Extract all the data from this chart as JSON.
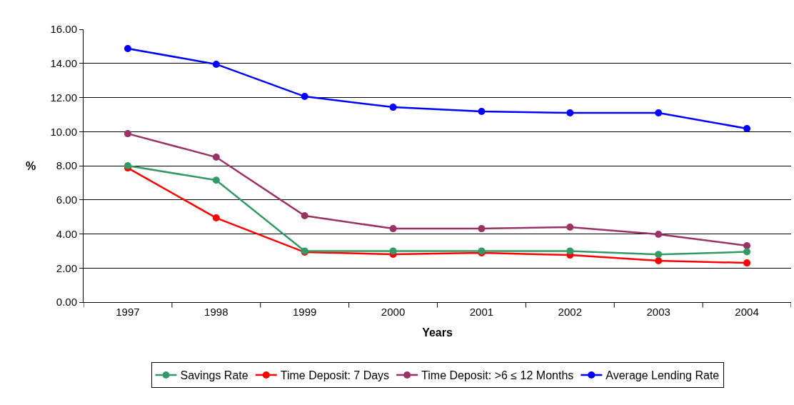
{
  "chart_data": {
    "type": "line",
    "xlabel": "Years",
    "ylabel": "%",
    "categories": [
      "1997",
      "1998",
      "1999",
      "2000",
      "2001",
      "2002",
      "2003",
      "2004"
    ],
    "series": [
      {
        "name": "Savings Rate",
        "color": "#339966",
        "values": [
          8.0,
          7.15,
          3.0,
          3.0,
          3.0,
          3.0,
          2.8,
          2.95
        ]
      },
      {
        "name": "Time Deposit: 7 Days",
        "color": "#ff0000",
        "values": [
          7.87,
          4.94,
          2.93,
          2.81,
          2.89,
          2.76,
          2.43,
          2.3
        ]
      },
      {
        "name": "Time Deposit: >6 ≤ 12 Months",
        "color": "#993366",
        "values": [
          9.88,
          8.5,
          5.07,
          4.31,
          4.31,
          4.4,
          3.98,
          3.31
        ]
      },
      {
        "name": "Average Lending Rate",
        "color": "#0000ff",
        "values": [
          14.87,
          13.95,
          12.06,
          11.43,
          11.18,
          11.1,
          11.1,
          10.18
        ]
      }
    ],
    "ylim": [
      0,
      16
    ],
    "yticks": [
      {
        "value": 0,
        "label": "0.00"
      },
      {
        "value": 2,
        "label": "2.00"
      },
      {
        "value": 4,
        "label": "4.00"
      },
      {
        "value": 6,
        "label": "6.00"
      },
      {
        "value": 8,
        "label": "8.00"
      },
      {
        "value": 10,
        "label": "10.00"
      },
      {
        "value": 12,
        "label": "12.00"
      },
      {
        "value": 14,
        "label": "14.00"
      },
      {
        "value": 16,
        "label": "16.00"
      }
    ],
    "grid": "y",
    "legend": "bottom",
    "marker": "circle",
    "line_style": "solid"
  }
}
